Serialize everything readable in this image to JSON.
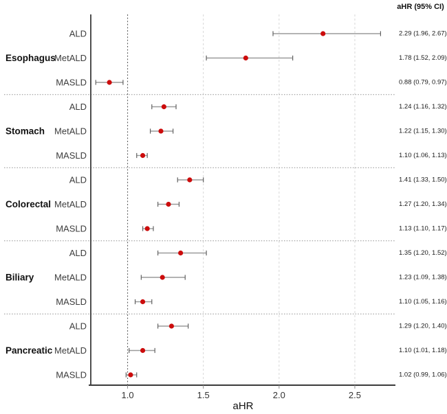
{
  "chart_data": {
    "type": "forest",
    "ci_column_title": "aHR (95% CI)",
    "xlabel": "aHR",
    "x_ticks": [
      1.0,
      1.5,
      2.0,
      2.5
    ],
    "x_tick_labels": [
      "1.0",
      "1.5",
      "2.0",
      "2.5"
    ],
    "xlim": [
      0.757,
      2.768
    ],
    "reference_line": 1.0,
    "grid": true,
    "legend_position": "none",
    "groups": [
      {
        "name": "Esophagus",
        "rows": [
          {
            "label": "ALD",
            "est": 2.29,
            "lo": 1.96,
            "hi": 2.67,
            "text": "2.29 (1.96, 2.67)"
          },
          {
            "label": "MetALD",
            "est": 1.78,
            "lo": 1.52,
            "hi": 2.09,
            "text": "1.78 (1.52, 2.09)"
          },
          {
            "label": "MASLD",
            "est": 0.88,
            "lo": 0.79,
            "hi": 0.97,
            "text": "0.88 (0.79, 0.97)"
          }
        ]
      },
      {
        "name": "Stomach",
        "rows": [
          {
            "label": "ALD",
            "est": 1.24,
            "lo": 1.16,
            "hi": 1.32,
            "text": "1.24 (1.16, 1.32)"
          },
          {
            "label": "MetALD",
            "est": 1.22,
            "lo": 1.15,
            "hi": 1.3,
            "text": "1.22 (1.15, 1.30)"
          },
          {
            "label": "MASLD",
            "est": 1.1,
            "lo": 1.06,
            "hi": 1.13,
            "text": "1.10 (1.06, 1.13)"
          }
        ]
      },
      {
        "name": "Colorectal",
        "rows": [
          {
            "label": "ALD",
            "est": 1.41,
            "lo": 1.33,
            "hi": 1.5,
            "text": "1.41 (1.33, 1.50)"
          },
          {
            "label": "MetALD",
            "est": 1.27,
            "lo": 1.2,
            "hi": 1.34,
            "text": "1.27 (1.20, 1.34)"
          },
          {
            "label": "MASLD",
            "est": 1.13,
            "lo": 1.1,
            "hi": 1.17,
            "text": "1.13 (1.10, 1.17)"
          }
        ]
      },
      {
        "name": "Biliary",
        "rows": [
          {
            "label": "ALD",
            "est": 1.35,
            "lo": 1.2,
            "hi": 1.52,
            "text": "1.35 (1.20, 1.52)"
          },
          {
            "label": "MetALD",
            "est": 1.23,
            "lo": 1.09,
            "hi": 1.38,
            "text": "1.23 (1.09, 1.38)"
          },
          {
            "label": "MASLD",
            "est": 1.1,
            "lo": 1.05,
            "hi": 1.16,
            "text": "1.10 (1.05, 1.16)"
          }
        ]
      },
      {
        "name": "Pancreatic",
        "rows": [
          {
            "label": "ALD",
            "est": 1.29,
            "lo": 1.2,
            "hi": 1.4,
            "text": "1.29 (1.20, 1.40)"
          },
          {
            "label": "MetALD",
            "est": 1.1,
            "lo": 1.01,
            "hi": 1.18,
            "text": "1.10 (1.01, 1.18)"
          },
          {
            "label": "MASLD",
            "est": 1.02,
            "lo": 0.99,
            "hi": 1.06,
            "text": "1.02 (0.99, 1.06)"
          }
        ]
      }
    ],
    "colors": {
      "point": "#cc0c0c",
      "ci_line": "#9a9a9a",
      "ci_cap": "#616161",
      "axis": "#3a3a3a",
      "reference_line": "#5f5f5f",
      "gridline": "#d8d8d8",
      "separator": "#8f8f8f",
      "text": "#1a1a1a",
      "row_label_text": "#3d3d3d",
      "tick_label_text": "#333333",
      "background": "#ffffff"
    }
  }
}
